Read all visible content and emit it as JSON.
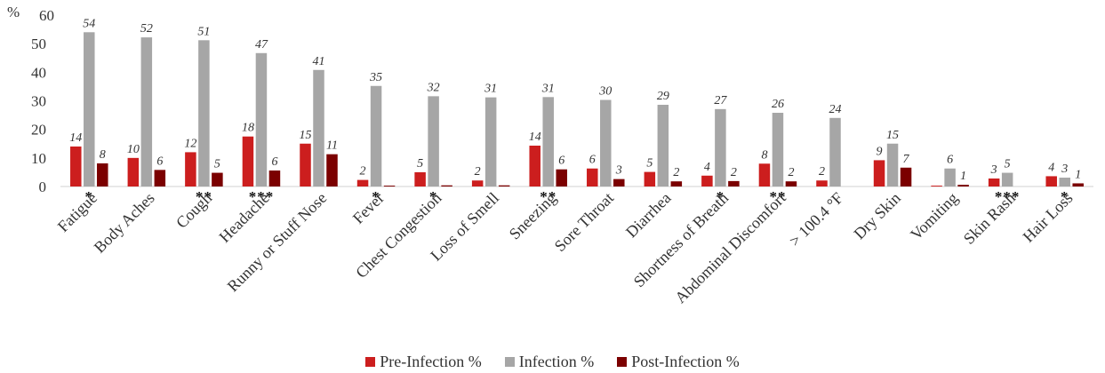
{
  "chart_data": {
    "type": "bar",
    "ylabel": "%",
    "ylim": [
      0,
      60
    ],
    "yticks": [
      0,
      10,
      20,
      30,
      40,
      50,
      60
    ],
    "grid": false,
    "legend_position": "bottom",
    "categories": [
      "Fatigue",
      "Body Aches",
      "Cough",
      "Headache",
      "Runny or Stuff Nose",
      "Fever",
      "Chest Congestion",
      "Loss of Smell",
      "Sneezing",
      "Sore Throat",
      "Diarrhea",
      "Shortness of Breath",
      "Abdominal Discomfort",
      "> 100.4 °F",
      "Dry Skin",
      "Vomiting",
      "Skin Rash",
      "Hair Loss"
    ],
    "series": [
      {
        "name": "Pre-Infection %",
        "color": "#cc1e1e",
        "values": [
          14,
          10,
          12,
          17.5,
          15,
          2.3,
          5,
          2.1,
          14.3,
          6.3,
          5.1,
          3.8,
          8,
          2.1,
          9.2,
          0.3,
          2.8,
          3.6
        ],
        "labels": [
          "14",
          "10",
          "12",
          "18",
          "15",
          "2",
          "5",
          "2",
          "14",
          "6",
          "5",
          "4",
          "8",
          "2",
          "9",
          "",
          "3",
          "4"
        ]
      },
      {
        "name": "Infection %",
        "color": "#a6a6a6",
        "values": [
          54,
          52.2,
          51.2,
          46.7,
          40.8,
          35.2,
          31.6,
          31.2,
          31.3,
          30.3,
          28.6,
          27.1,
          25.8,
          24,
          15,
          6.3,
          4.8,
          3.1
        ],
        "labels": [
          "54",
          "52",
          "51",
          "47",
          "41",
          "35",
          "32",
          "31",
          "31",
          "30",
          "29",
          "27",
          "26",
          "24",
          "15",
          "6",
          "5",
          "3"
        ]
      },
      {
        "name": "Post-Infection %",
        "color": "#7b0000",
        "values": [
          8.1,
          5.8,
          4.8,
          5.6,
          11.3,
          0.3,
          0.4,
          0.4,
          6,
          2.6,
          1.8,
          1.9,
          1.8,
          0,
          6.6,
          0.6,
          0,
          1.1
        ],
        "labels": [
          "8",
          "6",
          "5",
          "6",
          "11",
          "",
          "",
          "",
          "6",
          "3",
          "2",
          "2",
          "2",
          "",
          "7",
          "1",
          "",
          "1"
        ]
      }
    ],
    "significance": [
      "*",
      "",
      "**",
      "***",
      "",
      "*",
      "*",
      "",
      "**",
      "",
      "",
      "*",
      "**",
      "",
      "",
      "",
      "***",
      "*"
    ]
  }
}
